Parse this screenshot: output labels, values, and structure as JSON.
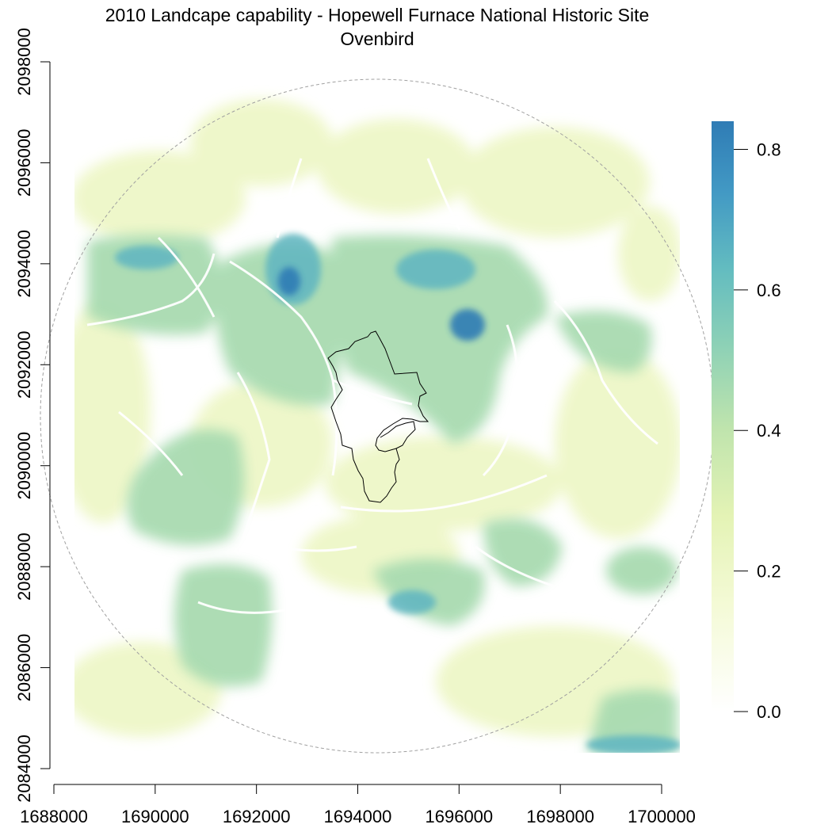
{
  "title": {
    "line1": "2010 Landcape capability - Hopewell Furnace National Historic Site",
    "line2": "Ovenbird"
  },
  "chart_data": {
    "type": "heatmap",
    "x_ticks": [
      "1688000",
      "1690000",
      "1692000",
      "1694000",
      "1696000",
      "1698000",
      "1700000"
    ],
    "y_ticks": [
      "2084000",
      "2086000",
      "2088000",
      "2090000",
      "2092000",
      "2094000",
      "2096000",
      "2098000"
    ],
    "xlim": [
      1688000,
      1700000
    ],
    "ylim": [
      2084000,
      2098000
    ],
    "legend": {
      "position": "right",
      "min": 0.0,
      "max": 0.84,
      "tick_labels": [
        "0.0",
        "0.2",
        "0.4",
        "0.6",
        "0.8"
      ],
      "colors": [
        "#ffffff",
        "#f2f9d2",
        "#dff0b4",
        "#b6e0ad",
        "#7ecbb8",
        "#55b1c1",
        "#3b8dbf",
        "#2f7cb5"
      ]
    },
    "overlays": [
      "study-area-buffer (dashed gray circle)",
      "park-boundary (black outline)"
    ]
  },
  "colors": {
    "high": "#2f7cb5",
    "mid": "#7ecbb8",
    "low": "#f1f8cf",
    "background": "#ffffff"
  }
}
